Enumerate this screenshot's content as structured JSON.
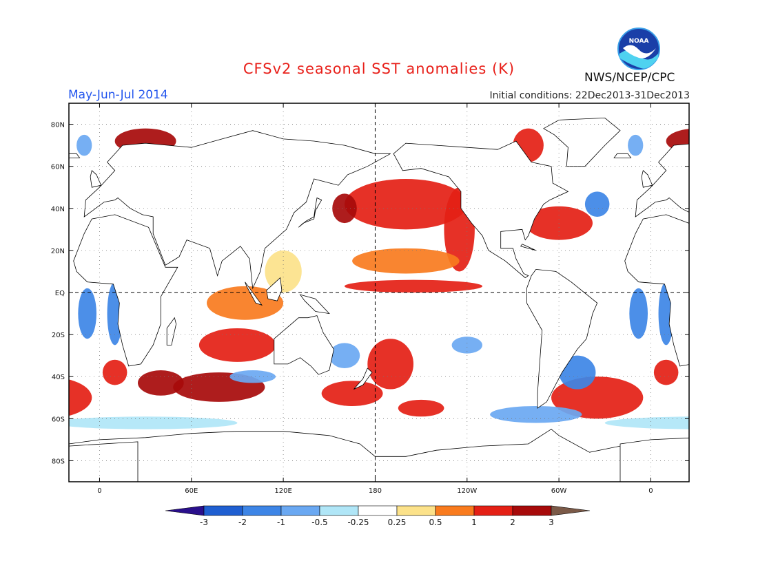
{
  "header": {
    "title": "CFSv2 seasonal SST anomalies (K)",
    "period": "May-Jun-Jul 2014",
    "initial_conditions": "Initial conditions: 22Dec2013-31Dec2013",
    "organization": "NWS/NCEP/CPC",
    "logo_text": "NOAA"
  },
  "axes": {
    "lat_labels": [
      "80N",
      "60N",
      "40N",
      "20N",
      "EQ",
      "20S",
      "40S",
      "60S",
      "80S"
    ],
    "lat_values": [
      80,
      60,
      40,
      20,
      0,
      -20,
      -40,
      -60,
      -80
    ],
    "lon_labels": [
      "0",
      "60E",
      "120E",
      "180",
      "120W",
      "60W",
      "0"
    ],
    "lon_values": [
      0,
      60,
      120,
      180,
      240,
      300,
      360
    ],
    "lon_range": [
      -20,
      385
    ],
    "lat_range": [
      -90,
      90
    ]
  },
  "colorbar": {
    "labels": [
      "-3",
      "-2",
      "-1",
      "-0.5",
      "-0.25",
      "0.25",
      "0.5",
      "1",
      "2",
      "3"
    ],
    "colors": [
      "#2a0f8c",
      "#1f5fd1",
      "#3d85e6",
      "#6aa8f2",
      "#b0e6f7",
      "#ffffff",
      "#fce28a",
      "#f97b1e",
      "#e42015",
      "#a70a0a",
      "#7b5a48"
    ]
  },
  "anomaly_fields": [
    {
      "lon": 200,
      "lat": 42,
      "rx": 40,
      "ry": 12,
      "level": 8
    },
    {
      "lon": 235,
      "lat": 30,
      "rx": 10,
      "ry": 20,
      "level": 8
    },
    {
      "lon": 205,
      "lat": 3,
      "rx": 45,
      "ry": 3,
      "level": 8
    },
    {
      "lon": 300,
      "lat": 33,
      "rx": 22,
      "ry": 8,
      "level": 8
    },
    {
      "lon": 160,
      "lat": 40,
      "rx": 8,
      "ry": 7,
      "level": 9
    },
    {
      "lon": 30,
      "lat": 72,
      "rx": 20,
      "ry": 6,
      "level": 9
    },
    {
      "lon": 78,
      "lat": -45,
      "rx": 30,
      "ry": 7,
      "level": 9
    },
    {
      "lon": 40,
      "lat": -43,
      "rx": 15,
      "ry": 6,
      "level": 9
    },
    {
      "lon": 190,
      "lat": -34,
      "rx": 15,
      "ry": 12,
      "level": 8
    },
    {
      "lon": 90,
      "lat": -25,
      "rx": 25,
      "ry": 8,
      "level": 8
    },
    {
      "lon": 165,
      "lat": -48,
      "rx": 20,
      "ry": 6,
      "level": 8
    },
    {
      "lon": 210,
      "lat": -55,
      "rx": 15,
      "ry": 4,
      "level": 8
    },
    {
      "lon": 95,
      "lat": -5,
      "rx": 25,
      "ry": 8,
      "level": 7
    },
    {
      "lon": 200,
      "lat": 15,
      "rx": 35,
      "ry": 6,
      "level": 7
    },
    {
      "lon": 325,
      "lat": -50,
      "rx": 30,
      "ry": 10,
      "level": 8
    },
    {
      "lon": 280,
      "lat": 70,
      "rx": 10,
      "ry": 8,
      "level": 8
    },
    {
      "lon": 10,
      "lat": -38,
      "rx": 8,
      "ry": 6,
      "level": 8
    },
    {
      "lon": 325,
      "lat": 42,
      "rx": 8,
      "ry": 6,
      "level": 2
    },
    {
      "lon": 312,
      "lat": -38,
      "rx": 12,
      "ry": 8,
      "level": 2
    },
    {
      "lon": 10,
      "lat": -10,
      "rx": 5,
      "ry": 15,
      "level": 2
    },
    {
      "lon": 352,
      "lat": -10,
      "rx": 6,
      "ry": 12,
      "level": 2
    },
    {
      "lon": 240,
      "lat": -25,
      "rx": 10,
      "ry": 4,
      "level": 3
    },
    {
      "lon": 285,
      "lat": -58,
      "rx": 30,
      "ry": 4,
      "level": 3
    },
    {
      "lon": 100,
      "lat": -40,
      "rx": 15,
      "ry": 3,
      "level": 3
    },
    {
      "lon": 30,
      "lat": -62,
      "rx": 60,
      "ry": 3,
      "level": 4
    },
    {
      "lon": 160,
      "lat": -30,
      "rx": 10,
      "ry": 6,
      "level": 3
    },
    {
      "lon": -10,
      "lat": 70,
      "rx": 5,
      "ry": 5,
      "level": 3
    },
    {
      "lon": 120,
      "lat": 10,
      "rx": 12,
      "ry": 10,
      "level": 6
    }
  ]
}
